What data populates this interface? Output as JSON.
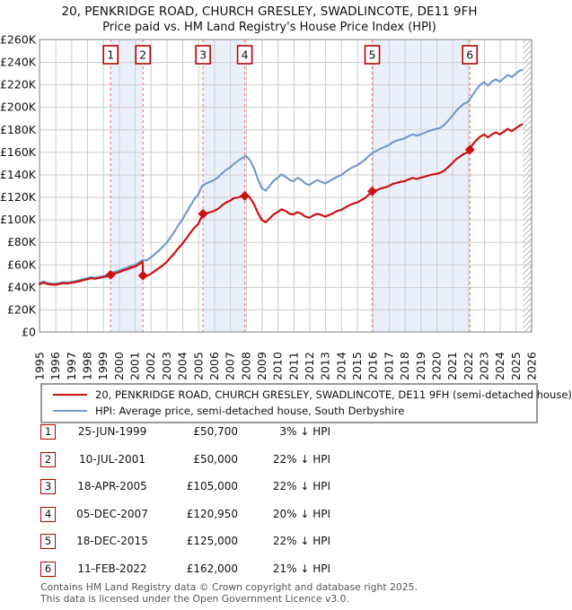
{
  "title": {
    "line1": "20, PENKRIDGE ROAD, CHURCH GRESLEY, SWADLINCOTE, DE11 9FH",
    "line2": "Price paid vs. HM Land Registry's House Price Index (HPI)"
  },
  "chart_data": {
    "type": "line",
    "x_range": [
      1995,
      2026
    ],
    "y_range": [
      0,
      260000
    ],
    "y_tick_step": 20000,
    "y_tick_labels": [
      "£0",
      "£20K",
      "£40K",
      "£60K",
      "£80K",
      "£100K",
      "£120K",
      "£140K",
      "£160K",
      "£180K",
      "£200K",
      "£220K",
      "£240K",
      "£260K"
    ],
    "x_tick_labels": [
      "1995",
      "1996",
      "1997",
      "1998",
      "1999",
      "2000",
      "2001",
      "2002",
      "2003",
      "2004",
      "2005",
      "2006",
      "2007",
      "2008",
      "2009",
      "2010",
      "2011",
      "2012",
      "2013",
      "2014",
      "2015",
      "2016",
      "2017",
      "2018",
      "2019",
      "2020",
      "2021",
      "2022",
      "2023",
      "2024",
      "2025",
      "2026"
    ],
    "grid": true,
    "legend_position": "bottom",
    "hatch_start": 2025.45,
    "ownership_bands": [
      [
        1999.48,
        2001.52
      ],
      [
        2005.3,
        2007.93
      ],
      [
        2015.96,
        2022.11
      ]
    ],
    "colors": {
      "property": "#cc1111",
      "hpi": "#7699cc",
      "event_line": "#f08080",
      "band": "#eaf0fa",
      "grid": "#cccccc",
      "border": "#999999",
      "hatch": "#bbbbbb",
      "marker_box_border": "#bb0000"
    },
    "series": [
      {
        "name": "HPI: Average price, semi-detached house, South Derbyshire",
        "color": "#7699cc",
        "points": [
          [
            1995.0,
            43500
          ],
          [
            1995.25,
            44800
          ],
          [
            1995.5,
            43600
          ],
          [
            1995.75,
            43000
          ],
          [
            1996.0,
            42800
          ],
          [
            1996.25,
            43500
          ],
          [
            1996.5,
            44200
          ],
          [
            1996.75,
            44000
          ],
          [
            1997.0,
            44500
          ],
          [
            1997.25,
            45200
          ],
          [
            1997.5,
            46000
          ],
          [
            1997.75,
            47000
          ],
          [
            1998.0,
            47800
          ],
          [
            1998.25,
            48800
          ],
          [
            1998.5,
            48200
          ],
          [
            1998.75,
            49000
          ],
          [
            1999.0,
            49600
          ],
          [
            1999.25,
            50500
          ],
          [
            1999.5,
            52300
          ],
          [
            1999.75,
            53500
          ],
          [
            2000.0,
            54500
          ],
          [
            2000.25,
            56000
          ],
          [
            2000.5,
            57000
          ],
          [
            2000.75,
            58500
          ],
          [
            2001.0,
            59500
          ],
          [
            2001.25,
            61500
          ],
          [
            2001.5,
            64000
          ],
          [
            2001.75,
            63500
          ],
          [
            2002.0,
            66000
          ],
          [
            2002.25,
            69000
          ],
          [
            2002.5,
            72000
          ],
          [
            2002.75,
            75500
          ],
          [
            2003.0,
            79000
          ],
          [
            2003.25,
            84000
          ],
          [
            2003.5,
            89000
          ],
          [
            2003.75,
            95000
          ],
          [
            2004.0,
            100000
          ],
          [
            2004.25,
            106000
          ],
          [
            2004.5,
            112000
          ],
          [
            2004.75,
            118000
          ],
          [
            2005.0,
            122000
          ],
          [
            2005.25,
            130000
          ],
          [
            2005.5,
            132000
          ],
          [
            2005.75,
            133500
          ],
          [
            2006.0,
            135000
          ],
          [
            2006.25,
            137500
          ],
          [
            2006.5,
            141000
          ],
          [
            2006.75,
            144000
          ],
          [
            2007.0,
            146000
          ],
          [
            2007.25,
            149500
          ],
          [
            2007.5,
            152000
          ],
          [
            2007.75,
            154500
          ],
          [
            2008.0,
            156500
          ],
          [
            2008.25,
            153000
          ],
          [
            2008.5,
            146000
          ],
          [
            2008.75,
            136000
          ],
          [
            2009.0,
            128000
          ],
          [
            2009.25,
            125500
          ],
          [
            2009.5,
            130000
          ],
          [
            2009.75,
            134500
          ],
          [
            2010.0,
            137000
          ],
          [
            2010.25,
            140000
          ],
          [
            2010.5,
            138000
          ],
          [
            2010.75,
            135000
          ],
          [
            2011.0,
            134000
          ],
          [
            2011.25,
            137000
          ],
          [
            2011.5,
            135000
          ],
          [
            2011.75,
            132000
          ],
          [
            2012.0,
            130500
          ],
          [
            2012.25,
            133000
          ],
          [
            2012.5,
            135000
          ],
          [
            2012.75,
            133500
          ],
          [
            2013.0,
            132000
          ],
          [
            2013.25,
            134000
          ],
          [
            2013.5,
            136000
          ],
          [
            2013.75,
            138000
          ],
          [
            2014.0,
            139500
          ],
          [
            2014.25,
            142000
          ],
          [
            2014.5,
            144500
          ],
          [
            2014.75,
            146500
          ],
          [
            2015.0,
            148000
          ],
          [
            2015.25,
            150500
          ],
          [
            2015.5,
            153000
          ],
          [
            2015.75,
            156500
          ],
          [
            2016.0,
            159500
          ],
          [
            2016.25,
            161000
          ],
          [
            2016.5,
            163000
          ],
          [
            2016.75,
            164500
          ],
          [
            2017.0,
            166000
          ],
          [
            2017.25,
            168500
          ],
          [
            2017.5,
            170000
          ],
          [
            2017.75,
            171000
          ],
          [
            2018.0,
            172000
          ],
          [
            2018.25,
            174000
          ],
          [
            2018.5,
            175500
          ],
          [
            2018.75,
            174500
          ],
          [
            2019.0,
            175500
          ],
          [
            2019.25,
            177000
          ],
          [
            2019.5,
            178500
          ],
          [
            2019.75,
            179500
          ],
          [
            2020.0,
            180500
          ],
          [
            2020.25,
            181500
          ],
          [
            2020.5,
            184000
          ],
          [
            2020.75,
            188000
          ],
          [
            2021.0,
            192000
          ],
          [
            2021.25,
            196500
          ],
          [
            2021.5,
            200000
          ],
          [
            2021.75,
            203000
          ],
          [
            2022.0,
            204500
          ],
          [
            2022.25,
            210000
          ],
          [
            2022.5,
            215000
          ],
          [
            2022.75,
            219500
          ],
          [
            2023.0,
            222000
          ],
          [
            2023.25,
            219000
          ],
          [
            2023.5,
            222500
          ],
          [
            2023.75,
            224500
          ],
          [
            2024.0,
            222500
          ],
          [
            2024.25,
            225500
          ],
          [
            2024.5,
            228500
          ],
          [
            2024.75,
            226500
          ],
          [
            2025.0,
            229500
          ],
          [
            2025.2,
            232000
          ],
          [
            2025.4,
            233000
          ]
        ]
      },
      {
        "name": "20, PENKRIDGE ROAD, CHURCH GRESLEY, SWADLINCOTE, DE11 9FH (semi-detached house)",
        "color": "#cc1111",
        "points": [
          [
            1995.0,
            42500
          ],
          [
            1995.25,
            43800
          ],
          [
            1995.5,
            42600
          ],
          [
            1995.75,
            42200
          ],
          [
            1996.0,
            41900
          ],
          [
            1996.25,
            42600
          ],
          [
            1996.5,
            43300
          ],
          [
            1996.75,
            43100
          ],
          [
            1997.0,
            43600
          ],
          [
            1997.25,
            44200
          ],
          [
            1997.5,
            45000
          ],
          [
            1997.75,
            46000
          ],
          [
            1998.0,
            46800
          ],
          [
            1998.25,
            47800
          ],
          [
            1998.5,
            47200
          ],
          [
            1998.75,
            48000
          ],
          [
            1999.0,
            48600
          ],
          [
            1999.25,
            49400
          ],
          [
            1999.48,
            50700
          ],
          [
            1999.75,
            52000
          ],
          [
            2000.0,
            53000
          ],
          [
            2000.25,
            54500
          ],
          [
            2000.5,
            55500
          ],
          [
            2000.75,
            57000
          ],
          [
            2001.0,
            58000
          ],
          [
            2001.25,
            60000
          ],
          [
            2001.5,
            62500
          ],
          [
            2001.52,
            50000
          ],
          [
            2001.75,
            49600
          ],
          [
            2002.0,
            51500
          ],
          [
            2002.25,
            54000
          ],
          [
            2002.5,
            56500
          ],
          [
            2002.75,
            59000
          ],
          [
            2003.0,
            62000
          ],
          [
            2003.25,
            66000
          ],
          [
            2003.5,
            70000
          ],
          [
            2003.75,
            74500
          ],
          [
            2004.0,
            78500
          ],
          [
            2004.25,
            83000
          ],
          [
            2004.5,
            88000
          ],
          [
            2004.75,
            92500
          ],
          [
            2005.0,
            96000
          ],
          [
            2005.3,
            105000
          ],
          [
            2005.5,
            105500
          ],
          [
            2005.75,
            106500
          ],
          [
            2006.0,
            107500
          ],
          [
            2006.25,
            109500
          ],
          [
            2006.5,
            112500
          ],
          [
            2006.75,
            115000
          ],
          [
            2007.0,
            116500
          ],
          [
            2007.25,
            119000
          ],
          [
            2007.5,
            119500
          ],
          [
            2007.75,
            120500
          ],
          [
            2007.93,
            120950
          ],
          [
            2008.0,
            122000
          ],
          [
            2008.25,
            119500
          ],
          [
            2008.5,
            114000
          ],
          [
            2008.75,
            106000
          ],
          [
            2009.0,
            99500
          ],
          [
            2009.25,
            97500
          ],
          [
            2009.5,
            101000
          ],
          [
            2009.75,
            104500
          ],
          [
            2010.0,
            106500
          ],
          [
            2010.25,
            109000
          ],
          [
            2010.5,
            107500
          ],
          [
            2010.75,
            105000
          ],
          [
            2011.0,
            104500
          ],
          [
            2011.25,
            106500
          ],
          [
            2011.5,
            105000
          ],
          [
            2011.75,
            102500
          ],
          [
            2012.0,
            101500
          ],
          [
            2012.25,
            103500
          ],
          [
            2012.5,
            105000
          ],
          [
            2012.75,
            104000
          ],
          [
            2013.0,
            102500
          ],
          [
            2013.25,
            104000
          ],
          [
            2013.5,
            105500
          ],
          [
            2013.75,
            107500
          ],
          [
            2014.0,
            108500
          ],
          [
            2014.25,
            110500
          ],
          [
            2014.5,
            112500
          ],
          [
            2014.75,
            114000
          ],
          [
            2015.0,
            115000
          ],
          [
            2015.25,
            117000
          ],
          [
            2015.5,
            119000
          ],
          [
            2015.75,
            122000
          ],
          [
            2015.96,
            125000
          ],
          [
            2016.25,
            126000
          ],
          [
            2016.5,
            127500
          ],
          [
            2016.75,
            128500
          ],
          [
            2017.0,
            129500
          ],
          [
            2017.25,
            131500
          ],
          [
            2017.5,
            132500
          ],
          [
            2017.75,
            133500
          ],
          [
            2018.0,
            134000
          ],
          [
            2018.25,
            135500
          ],
          [
            2018.5,
            137000
          ],
          [
            2018.75,
            136000
          ],
          [
            2019.0,
            137000
          ],
          [
            2019.25,
            138000
          ],
          [
            2019.5,
            139000
          ],
          [
            2019.75,
            140000
          ],
          [
            2020.0,
            140500
          ],
          [
            2020.25,
            141500
          ],
          [
            2020.5,
            143500
          ],
          [
            2020.75,
            146500
          ],
          [
            2021.0,
            150000
          ],
          [
            2021.25,
            153500
          ],
          [
            2021.5,
            156000
          ],
          [
            2021.75,
            158500
          ],
          [
            2022.0,
            159500
          ],
          [
            2022.11,
            162000
          ],
          [
            2022.25,
            166000
          ],
          [
            2022.5,
            170000
          ],
          [
            2022.75,
            173500
          ],
          [
            2023.0,
            175500
          ],
          [
            2023.25,
            173000
          ],
          [
            2023.5,
            175500
          ],
          [
            2023.75,
            177500
          ],
          [
            2024.0,
            175500
          ],
          [
            2024.25,
            178000
          ],
          [
            2024.5,
            180500
          ],
          [
            2024.75,
            178500
          ],
          [
            2025.0,
            181000
          ],
          [
            2025.2,
            183000
          ],
          [
            2025.4,
            184500
          ]
        ]
      }
    ],
    "sales": [
      {
        "label": "1",
        "x": 1999.48,
        "y": 50700
      },
      {
        "label": "2",
        "x": 2001.52,
        "y": 50000
      },
      {
        "label": "3",
        "x": 2005.3,
        "y": 105000
      },
      {
        "label": "4",
        "x": 2007.93,
        "y": 120950
      },
      {
        "label": "5",
        "x": 2015.96,
        "y": 125000
      },
      {
        "label": "6",
        "x": 2022.11,
        "y": 162000
      }
    ]
  },
  "legend": {
    "items": [
      {
        "label": "20, PENKRIDGE ROAD, CHURCH GRESLEY, SWADLINCOTE, DE11 9FH (semi-detached house)",
        "color": "#cc1111"
      },
      {
        "label": "HPI: Average price, semi-detached house, South Derbyshire",
        "color": "#7699cc"
      }
    ]
  },
  "transactions": [
    {
      "num": "1",
      "date": "25-JUN-1999",
      "price": "£50,700",
      "vs_hpi": "3% ↓ HPI"
    },
    {
      "num": "2",
      "date": "10-JUL-2001",
      "price": "£50,000",
      "vs_hpi": "22% ↓ HPI"
    },
    {
      "num": "3",
      "date": "18-APR-2005",
      "price": "£105,000",
      "vs_hpi": "22% ↓ HPI"
    },
    {
      "num": "4",
      "date": "05-DEC-2007",
      "price": "£120,950",
      "vs_hpi": "20% ↓ HPI"
    },
    {
      "num": "5",
      "date": "18-DEC-2015",
      "price": "£125,000",
      "vs_hpi": "22% ↓ HPI"
    },
    {
      "num": "6",
      "date": "11-FEB-2022",
      "price": "£162,000",
      "vs_hpi": "21% ↓ HPI"
    }
  ],
  "footer": {
    "line1": "Contains HM Land Registry data © Crown copyright and database right 2025.",
    "line2": "This data is licensed under the Open Government Licence v3.0."
  }
}
